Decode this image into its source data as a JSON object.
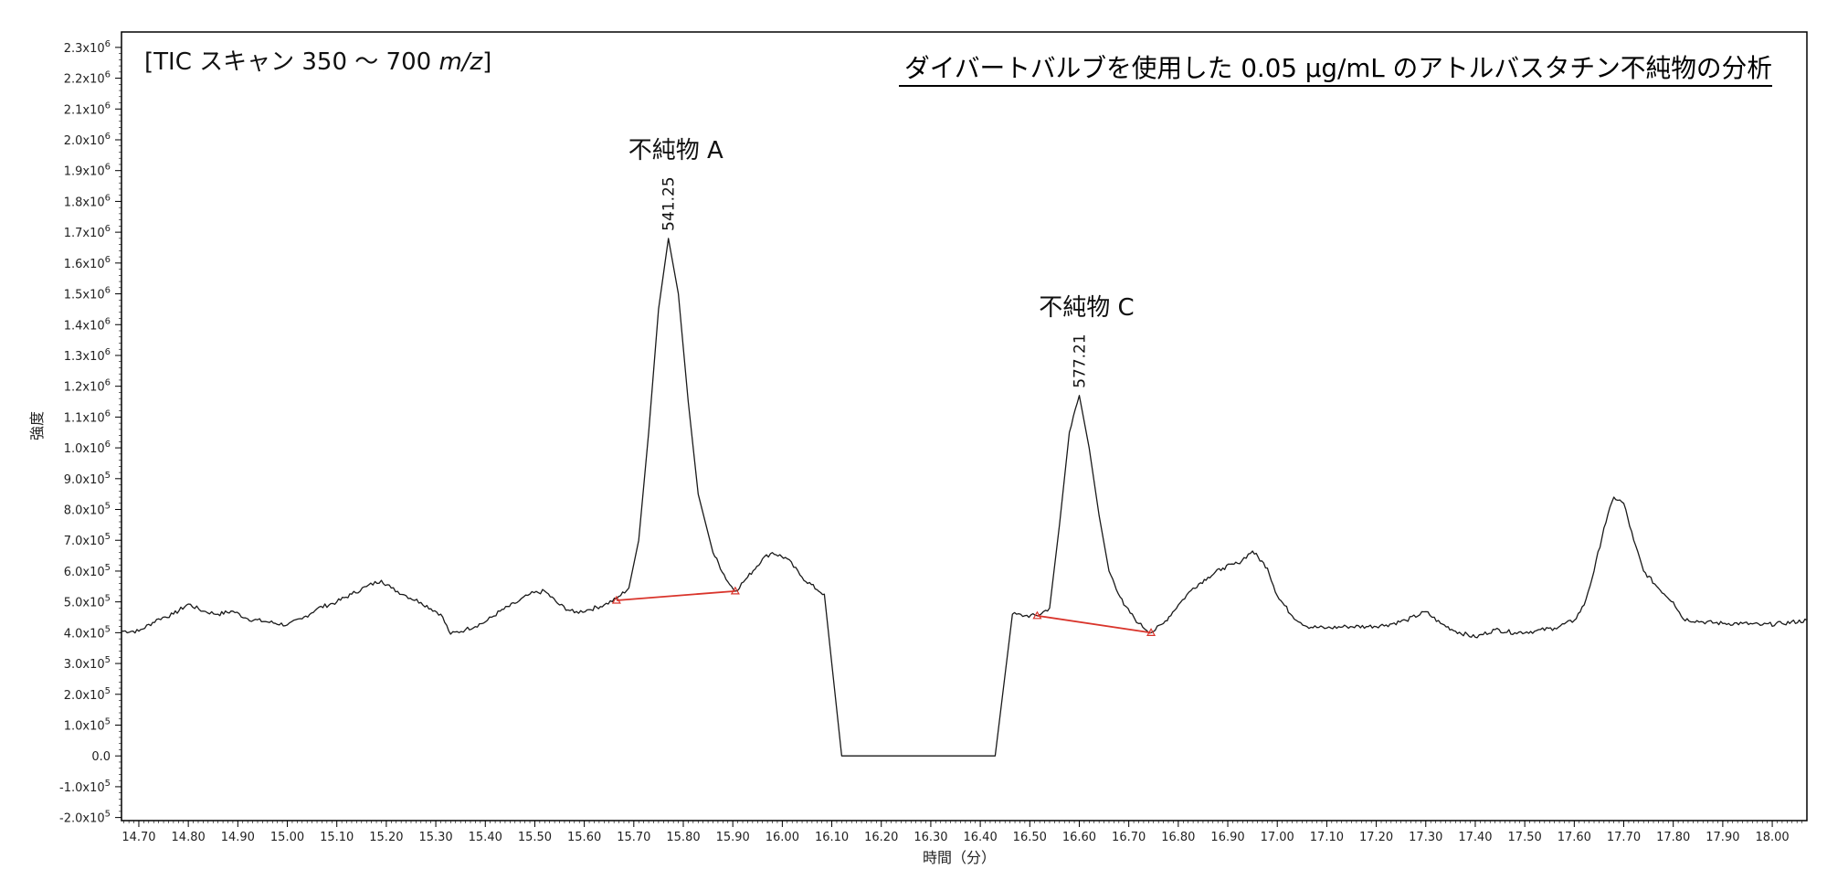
{
  "chart_data": {
    "type": "line",
    "title": "ダイバートバルブを使用した 0.05 μg/mL のアトルバスタチン不純物の分析",
    "scan_prefix": "[TIC スキャン 350 ～ 700 ",
    "scan_unit": "m/z",
    "scan_suffix": "]",
    "xlabel": "時間（分）",
    "ylabel": "強度",
    "xlim": [
      14.665,
      18.07
    ],
    "ylim": [
      -210000,
      2350000
    ],
    "x_ticks": [
      14.7,
      14.8,
      14.9,
      15.0,
      15.1,
      15.2,
      15.3,
      15.4,
      15.5,
      15.6,
      15.7,
      15.8,
      15.9,
      16.0,
      16.1,
      16.2,
      16.3,
      16.4,
      16.5,
      16.6,
      16.7,
      16.8,
      16.9,
      17.0,
      17.1,
      17.2,
      17.3,
      17.4,
      17.5,
      17.6,
      17.7,
      17.8,
      17.9,
      18.0
    ],
    "y_ticks": [
      {
        "value": 2300000,
        "mant": "2.3x10",
        "exp": "6"
      },
      {
        "value": 2200000,
        "mant": "2.2x10",
        "exp": "6"
      },
      {
        "value": 2100000,
        "mant": "2.1x10",
        "exp": "6"
      },
      {
        "value": 2000000,
        "mant": "2.0x10",
        "exp": "6"
      },
      {
        "value": 1900000,
        "mant": "1.9x10",
        "exp": "6"
      },
      {
        "value": 1800000,
        "mant": "1.8x10",
        "exp": "6"
      },
      {
        "value": 1700000,
        "mant": "1.7x10",
        "exp": "6"
      },
      {
        "value": 1600000,
        "mant": "1.6x10",
        "exp": "6"
      },
      {
        "value": 1500000,
        "mant": "1.5x10",
        "exp": "6"
      },
      {
        "value": 1400000,
        "mant": "1.4x10",
        "exp": "6"
      },
      {
        "value": 1300000,
        "mant": "1.3x10",
        "exp": "6"
      },
      {
        "value": 1200000,
        "mant": "1.2x10",
        "exp": "6"
      },
      {
        "value": 1100000,
        "mant": "1.1x10",
        "exp": "6"
      },
      {
        "value": 1000000,
        "mant": "1.0x10",
        "exp": "6"
      },
      {
        "value": 900000,
        "mant": "9.0x10",
        "exp": "5"
      },
      {
        "value": 800000,
        "mant": "8.0x10",
        "exp": "5"
      },
      {
        "value": 700000,
        "mant": "7.0x10",
        "exp": "5"
      },
      {
        "value": 600000,
        "mant": "6.0x10",
        "exp": "5"
      },
      {
        "value": 500000,
        "mant": "5.0x10",
        "exp": "5"
      },
      {
        "value": 400000,
        "mant": "4.0x10",
        "exp": "5"
      },
      {
        "value": 300000,
        "mant": "3.0x10",
        "exp": "5"
      },
      {
        "value": 200000,
        "mant": "2.0x10",
        "exp": "5"
      },
      {
        "value": 100000,
        "mant": "1.0x10",
        "exp": "5"
      },
      {
        "value": 0,
        "mant": "0.0",
        "exp": ""
      },
      {
        "value": -100000,
        "mant": "-1.0x10",
        "exp": "5"
      },
      {
        "value": -200000,
        "mant": "-2.0x10",
        "exp": "5"
      }
    ],
    "series": [
      {
        "color": "#1a1a1a",
        "points": [
          [
            14.665,
            405000
          ],
          [
            14.7,
            405000
          ],
          [
            14.74,
            445000
          ],
          [
            14.77,
            460000
          ],
          [
            14.8,
            493000
          ],
          [
            14.83,
            470000
          ],
          [
            14.86,
            460000
          ],
          [
            14.89,
            470000
          ],
          [
            14.92,
            445000
          ],
          [
            14.96,
            435000
          ],
          [
            15.0,
            425000
          ],
          [
            15.03,
            445000
          ],
          [
            15.06,
            478000
          ],
          [
            15.1,
            500000
          ],
          [
            15.13,
            525000
          ],
          [
            15.16,
            550000
          ],
          [
            15.19,
            570000
          ],
          [
            15.21,
            545000
          ],
          [
            15.24,
            520000
          ],
          [
            15.27,
            498000
          ],
          [
            15.31,
            460000
          ],
          [
            15.33,
            395000
          ],
          [
            15.36,
            410000
          ],
          [
            15.4,
            435000
          ],
          [
            15.43,
            470000
          ],
          [
            15.46,
            495000
          ],
          [
            15.49,
            525000
          ],
          [
            15.52,
            535000
          ],
          [
            15.55,
            490000
          ],
          [
            15.58,
            465000
          ],
          [
            15.61,
            475000
          ],
          [
            15.64,
            490000
          ],
          [
            15.665,
            510000
          ],
          [
            15.69,
            545000
          ],
          [
            15.71,
            700000
          ],
          [
            15.73,
            1050000
          ],
          [
            15.75,
            1450000
          ],
          [
            15.77,
            1680000
          ],
          [
            15.79,
            1500000
          ],
          [
            15.81,
            1150000
          ],
          [
            15.83,
            850000
          ],
          [
            15.86,
            660000
          ],
          [
            15.89,
            565000
          ],
          [
            15.905,
            535000
          ],
          [
            15.93,
            580000
          ],
          [
            15.96,
            640000
          ],
          [
            15.98,
            660000
          ],
          [
            16.01,
            640000
          ],
          [
            16.04,
            580000
          ],
          [
            16.07,
            540000
          ],
          [
            16.085,
            525000
          ],
          [
            16.12,
            0
          ],
          [
            16.43,
            0
          ],
          [
            16.465,
            460000
          ],
          [
            16.49,
            455000
          ],
          [
            16.515,
            455000
          ],
          [
            16.54,
            480000
          ],
          [
            16.56,
            750000
          ],
          [
            16.58,
            1050000
          ],
          [
            16.6,
            1170000
          ],
          [
            16.62,
            1000000
          ],
          [
            16.64,
            780000
          ],
          [
            16.66,
            600000
          ],
          [
            16.69,
            490000
          ],
          [
            16.72,
            430000
          ],
          [
            16.745,
            400000
          ],
          [
            16.77,
            430000
          ],
          [
            16.8,
            490000
          ],
          [
            16.83,
            545000
          ],
          [
            16.86,
            580000
          ],
          [
            16.89,
            610000
          ],
          [
            16.92,
            625000
          ],
          [
            16.95,
            665000
          ],
          [
            16.98,
            610000
          ],
          [
            17.0,
            520000
          ],
          [
            17.03,
            455000
          ],
          [
            17.06,
            420000
          ],
          [
            17.1,
            415000
          ],
          [
            17.14,
            420000
          ],
          [
            17.18,
            420000
          ],
          [
            17.22,
            425000
          ],
          [
            17.26,
            440000
          ],
          [
            17.3,
            468000
          ],
          [
            17.33,
            430000
          ],
          [
            17.36,
            405000
          ],
          [
            17.4,
            385000
          ],
          [
            17.44,
            410000
          ],
          [
            17.48,
            400000
          ],
          [
            17.52,
            405000
          ],
          [
            17.56,
            415000
          ],
          [
            17.6,
            440000
          ],
          [
            17.62,
            490000
          ],
          [
            17.64,
            600000
          ],
          [
            17.66,
            740000
          ],
          [
            17.68,
            840000
          ],
          [
            17.7,
            820000
          ],
          [
            17.72,
            700000
          ],
          [
            17.74,
            600000
          ],
          [
            17.77,
            545000
          ],
          [
            17.8,
            500000
          ],
          [
            17.82,
            445000
          ],
          [
            17.86,
            435000
          ],
          [
            17.9,
            430000
          ],
          [
            17.94,
            430000
          ],
          [
            17.98,
            425000
          ],
          [
            18.02,
            430000
          ],
          [
            18.07,
            440000
          ]
        ]
      }
    ],
    "baselines": [
      {
        "color": "#d9342b",
        "start": [
          15.665,
          505000
        ],
        "end": [
          15.905,
          535000
        ]
      },
      {
        "color": "#d9342b",
        "start": [
          16.515,
          455000
        ],
        "end": [
          16.745,
          400000
        ]
      }
    ],
    "peaks": [
      {
        "label": "不純物 A",
        "value": "541.25",
        "x": 15.77,
        "y": 1680000
      },
      {
        "label": "不純物 C",
        "value": "577.21",
        "x": 16.6,
        "y": 1170000
      }
    ]
  }
}
